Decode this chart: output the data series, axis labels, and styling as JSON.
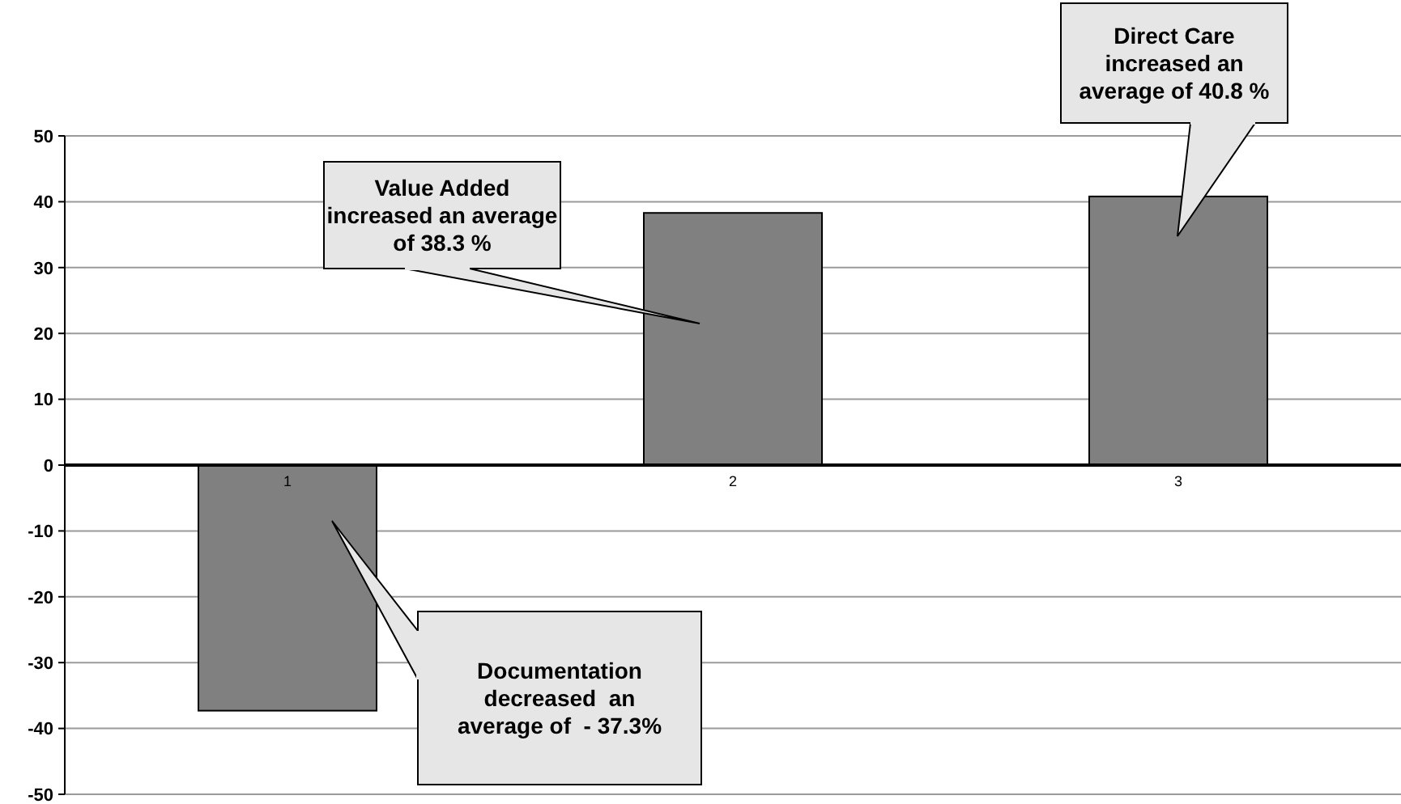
{
  "chart_data": {
    "type": "bar",
    "categories": [
      "1",
      "2",
      "3"
    ],
    "values": [
      -37.3,
      38.3,
      40.8
    ],
    "color": "#808080",
    "ylim": [
      -50,
      50
    ],
    "yticks": [
      -50,
      -40,
      -30,
      -20,
      -10,
      0,
      10,
      20,
      30,
      40,
      50
    ],
    "grid": "y",
    "annotations": [
      "Value Added\nincreased an average\nof 38.3 %",
      "Direct Care\nincreased an\naverage of 40.8 %",
      "Documentation\ndecreased  an\naverage of  - 37.3%"
    ]
  }
}
